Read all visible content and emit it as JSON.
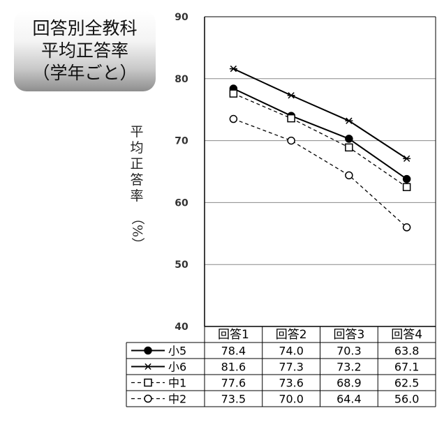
{
  "title_lines": [
    "回答別全教科",
    "平均正答率",
    "（学年ごと）"
  ],
  "ylabel": "平均正答率",
  "ylabel_unit": "（%）",
  "chart_data": {
    "type": "line",
    "title": "回答別全教科 平均正答率（学年ごと）",
    "xlabel": "",
    "ylabel": "平均正答率（%）",
    "ylim": [
      40,
      90
    ],
    "yticks": [
      40,
      50,
      60,
      70,
      80,
      90
    ],
    "grid": true,
    "legend": "data-table-left",
    "categories": [
      "回答1",
      "回答2",
      "回答3",
      "回答4"
    ],
    "series": [
      {
        "name": "小5",
        "values": [
          78.4,
          74.0,
          70.3,
          63.8
        ],
        "marker": "filled-circle",
        "line": "solid",
        "values_text": [
          "78.4",
          "74.0",
          "70.3",
          "63.8"
        ]
      },
      {
        "name": "小6",
        "values": [
          81.6,
          77.3,
          73.2,
          67.1
        ],
        "marker": "asterisk",
        "line": "solid",
        "values_text": [
          "81.6",
          "77.3",
          "73.2",
          "67.1"
        ]
      },
      {
        "name": "中1",
        "values": [
          77.6,
          73.6,
          68.9,
          62.5
        ],
        "marker": "open-square",
        "line": "dashed",
        "values_text": [
          "77.6",
          "73.6",
          "68.9",
          "62.5"
        ]
      },
      {
        "name": "中2",
        "values": [
          73.5,
          70.0,
          64.4,
          56.0
        ],
        "marker": "open-circle",
        "line": "dashed",
        "values_text": [
          "73.5",
          "70.0",
          "64.4",
          "56.0"
        ]
      }
    ]
  },
  "colors": {
    "line": "#000000",
    "grid": "#888888",
    "badge_dark": "#8e8e8e"
  }
}
